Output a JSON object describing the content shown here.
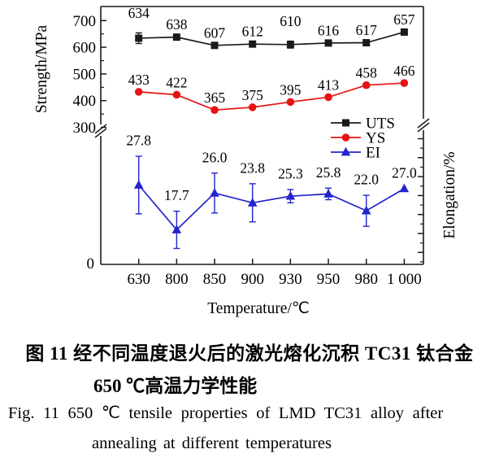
{
  "figure": {
    "caption_cn_line1": "图 11  经不同温度退火后的激光熔化沉积 TC31 钛合金",
    "caption_cn_line2": "650 ℃高温力学性能",
    "caption_en_line1": "Fig. 11  650 ℃ tensile properties of LMD TC31 alloy after",
    "caption_en_line2": "annealing at different temperatures"
  },
  "chart_data": {
    "type": "line",
    "title": "650 ℃ tensile properties of LMD TC31 alloy after annealing at different temperatures",
    "categories": [
      "630",
      "800",
      "850",
      "900",
      "930",
      "950",
      "980",
      "1 000"
    ],
    "xlabel": "Temperature/℃",
    "left_axis": {
      "label": "Strength/MPa",
      "major_ticks": [
        300,
        400,
        500,
        600,
        700
      ],
      "minor_ticks": [
        350,
        450,
        550,
        650
      ],
      "broken_axis": true,
      "bottom_zero_label": "0"
    },
    "right_axis": {
      "label": "Elongation/%",
      "broken_axis": true,
      "tick_labels_visible": false
    },
    "series": [
      {
        "name": "UTS",
        "axis": "strength",
        "color": "#1a1a1a",
        "marker": "square",
        "values": [
          634,
          638,
          607,
          612,
          610,
          616,
          617,
          657
        ],
        "labels": [
          "634",
          "638",
          "607",
          "612",
          "610",
          "616",
          "617",
          "657"
        ],
        "errors": [
          20,
          0,
          0,
          0,
          13,
          0,
          0,
          0
        ]
      },
      {
        "name": "YS",
        "axis": "strength",
        "color": "#e81414",
        "marker": "circle",
        "values": [
          433,
          422,
          365,
          375,
          395,
          413,
          458,
          466
        ],
        "labels": [
          "433",
          "422",
          "365",
          "375",
          "395",
          "413",
          "458",
          "466"
        ],
        "errors": [
          0,
          0,
          0,
          0,
          0,
          0,
          0,
          0
        ]
      },
      {
        "name": "EI",
        "axis": "elongation",
        "color": "#2424cc",
        "marker": "triangle",
        "values": [
          27.8,
          17.7,
          26.0,
          23.8,
          25.3,
          25.8,
          22.0,
          27.0
        ],
        "labels": [
          "27.8",
          "17.7",
          "26.0",
          "23.8",
          "25.3",
          "25.8",
          "22.0",
          "27.0"
        ],
        "errors": [
          6.5,
          4.2,
          4.5,
          4.3,
          1.5,
          1.3,
          3.5,
          0
        ]
      }
    ],
    "legend": {
      "position": "inside-right-middle",
      "entries": [
        "UTS",
        "YS",
        "EI"
      ]
    },
    "grid": false
  }
}
